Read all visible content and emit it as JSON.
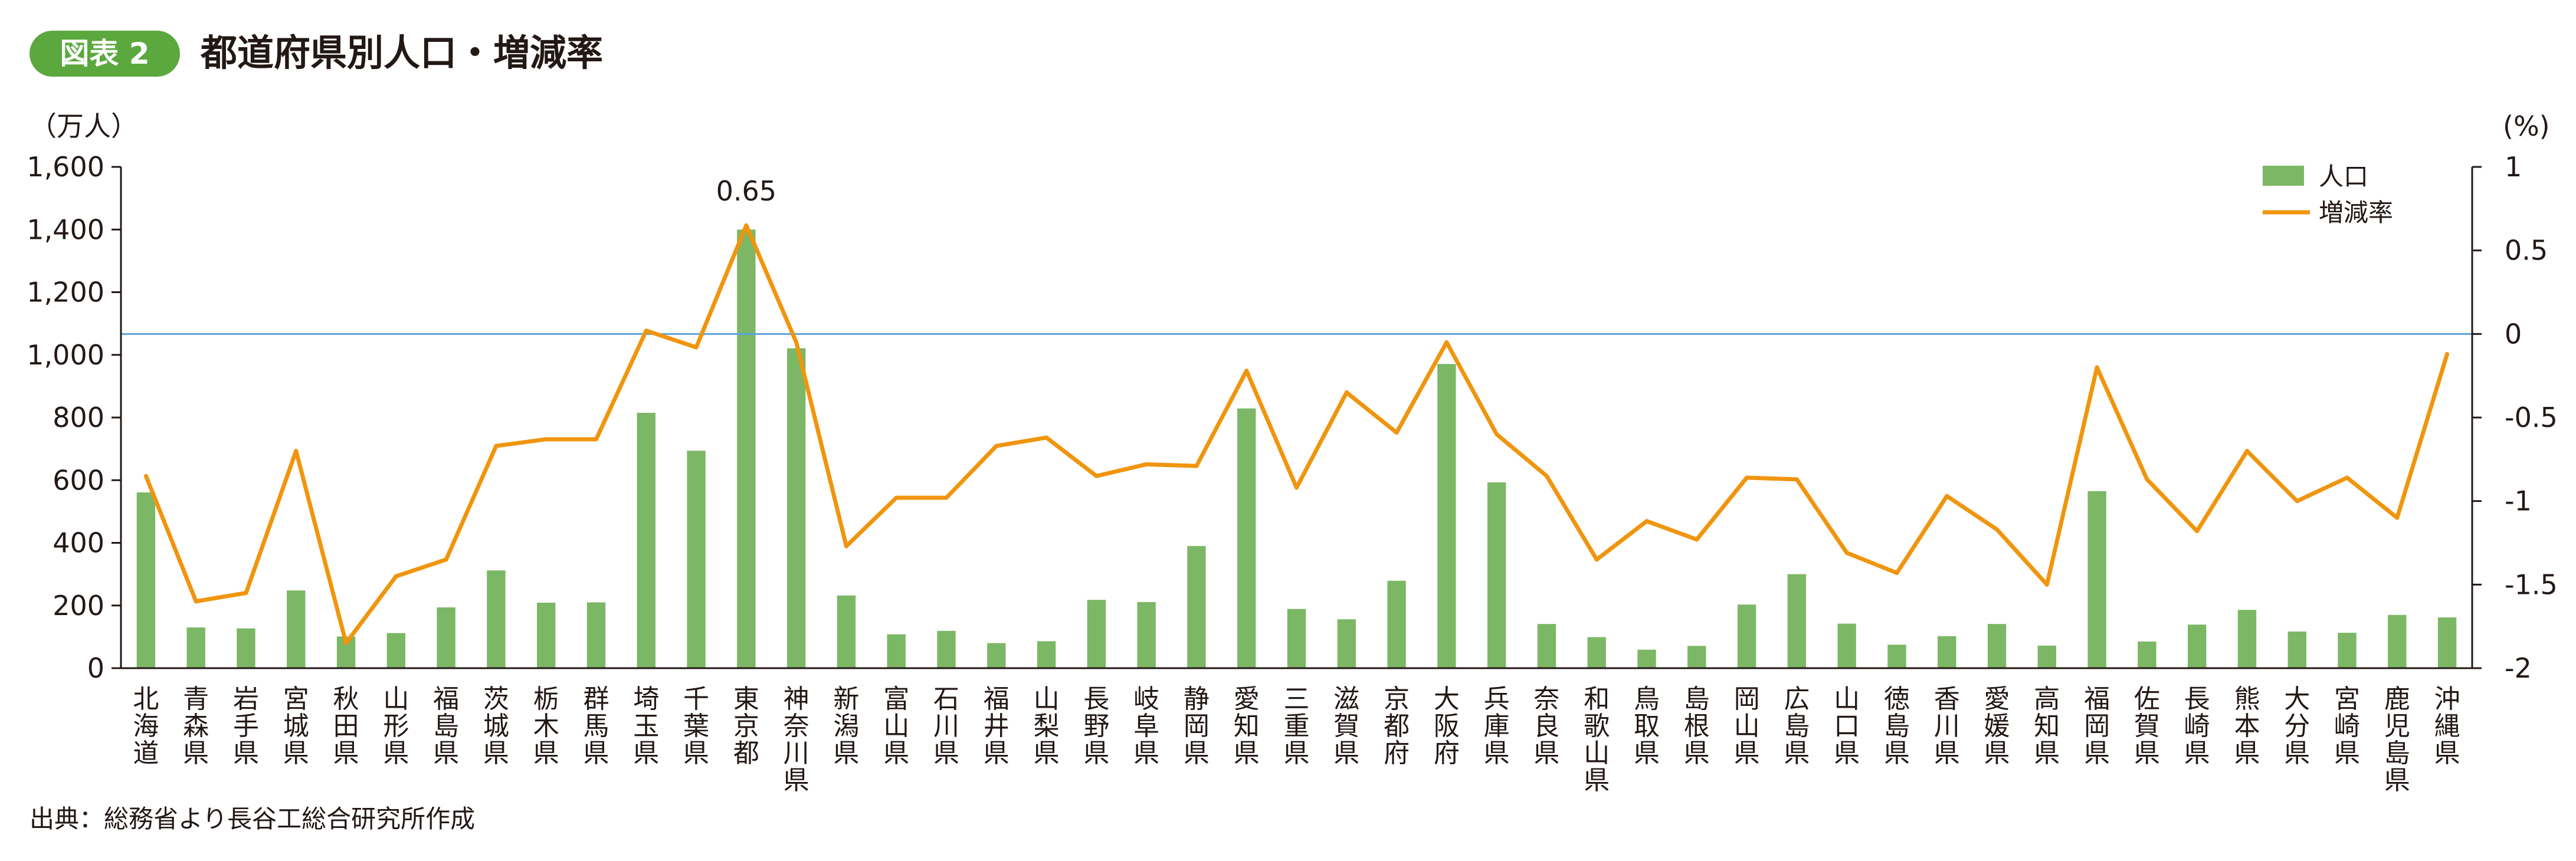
{
  "figure": {
    "badge": "図表 2",
    "title": "都道府県別人口・増減率",
    "source": "出典：総務省より長谷工総合研究所作成"
  },
  "colors": {
    "bar": "#7cb765",
    "line": "#f0950e",
    "zero_line": "#5ba3dc",
    "axis": "#231815",
    "badge": "#5aa83e"
  },
  "chart_data": {
    "type": "bar",
    "left_axis": {
      "unit_label": "（万人）",
      "ylim": [
        0,
        1600
      ],
      "ticks": [
        "0",
        "200",
        "400",
        "600",
        "800",
        "1,000",
        "1,200",
        "1,400",
        "1,600"
      ]
    },
    "right_axis": {
      "unit_label": "(%)",
      "ylim": [
        -2,
        1
      ],
      "ticks": [
        "-2",
        "-1.5",
        "-1",
        "-0.5",
        "0",
        "0.5",
        "1"
      ]
    },
    "grid": false,
    "legend_position": "top-right",
    "annotations": [
      {
        "category": "東京都",
        "series": "増減率",
        "text": "0.65"
      }
    ],
    "categories": [
      "北海道",
      "青森県",
      "岩手県",
      "宮城県",
      "秋田県",
      "山形県",
      "福島県",
      "茨城県",
      "栃木県",
      "群馬県",
      "埼玉県",
      "千葉県",
      "東京都",
      "神奈川県",
      "新潟県",
      "富山県",
      "石川県",
      "福井県",
      "山梨県",
      "長野県",
      "岐阜県",
      "静岡県",
      "愛知県",
      "三重県",
      "滋賀県",
      "京都府",
      "大阪府",
      "兵庫県",
      "奈良県",
      "和歌山県",
      "鳥取県",
      "島根県",
      "岡山県",
      "広島県",
      "山口県",
      "徳島県",
      "香川県",
      "愛媛県",
      "高知県",
      "福岡県",
      "佐賀県",
      "長崎県",
      "熊本県",
      "大分県",
      "宮崎県",
      "鹿児島県",
      "沖縄県"
    ],
    "series": [
      {
        "name": "人口",
        "type": "bar",
        "axis": "left",
        "values": [
          561,
          130,
          127,
          248,
          101,
          112,
          194,
          312,
          209,
          210,
          815,
          694,
          1400,
          1021,
          232,
          108,
          119,
          80,
          86,
          218,
          211,
          390,
          829,
          189,
          156,
          279,
          971,
          593,
          141,
          99,
          59,
          71,
          203,
          300,
          142,
          75,
          102,
          141,
          72,
          565,
          85,
          139,
          186,
          117,
          113,
          170,
          162
        ]
      },
      {
        "name": "増減率",
        "type": "line",
        "axis": "right",
        "values": [
          -0.85,
          -1.6,
          -1.55,
          -0.7,
          -1.85,
          -1.45,
          -1.35,
          -0.67,
          -0.63,
          -0.63,
          0.02,
          -0.08,
          0.65,
          -0.05,
          -1.27,
          -0.98,
          -0.98,
          -0.67,
          -0.62,
          -0.85,
          -0.78,
          -0.79,
          -0.22,
          -0.92,
          -0.35,
          -0.59,
          -0.05,
          -0.6,
          -0.85,
          -1.35,
          -1.12,
          -1.23,
          -0.86,
          -0.87,
          -1.31,
          -1.43,
          -0.97,
          -1.17,
          -1.5,
          -0.2,
          -0.87,
          -1.18,
          -0.7,
          -1.0,
          -0.86,
          -1.1,
          -0.12
        ]
      }
    ]
  }
}
